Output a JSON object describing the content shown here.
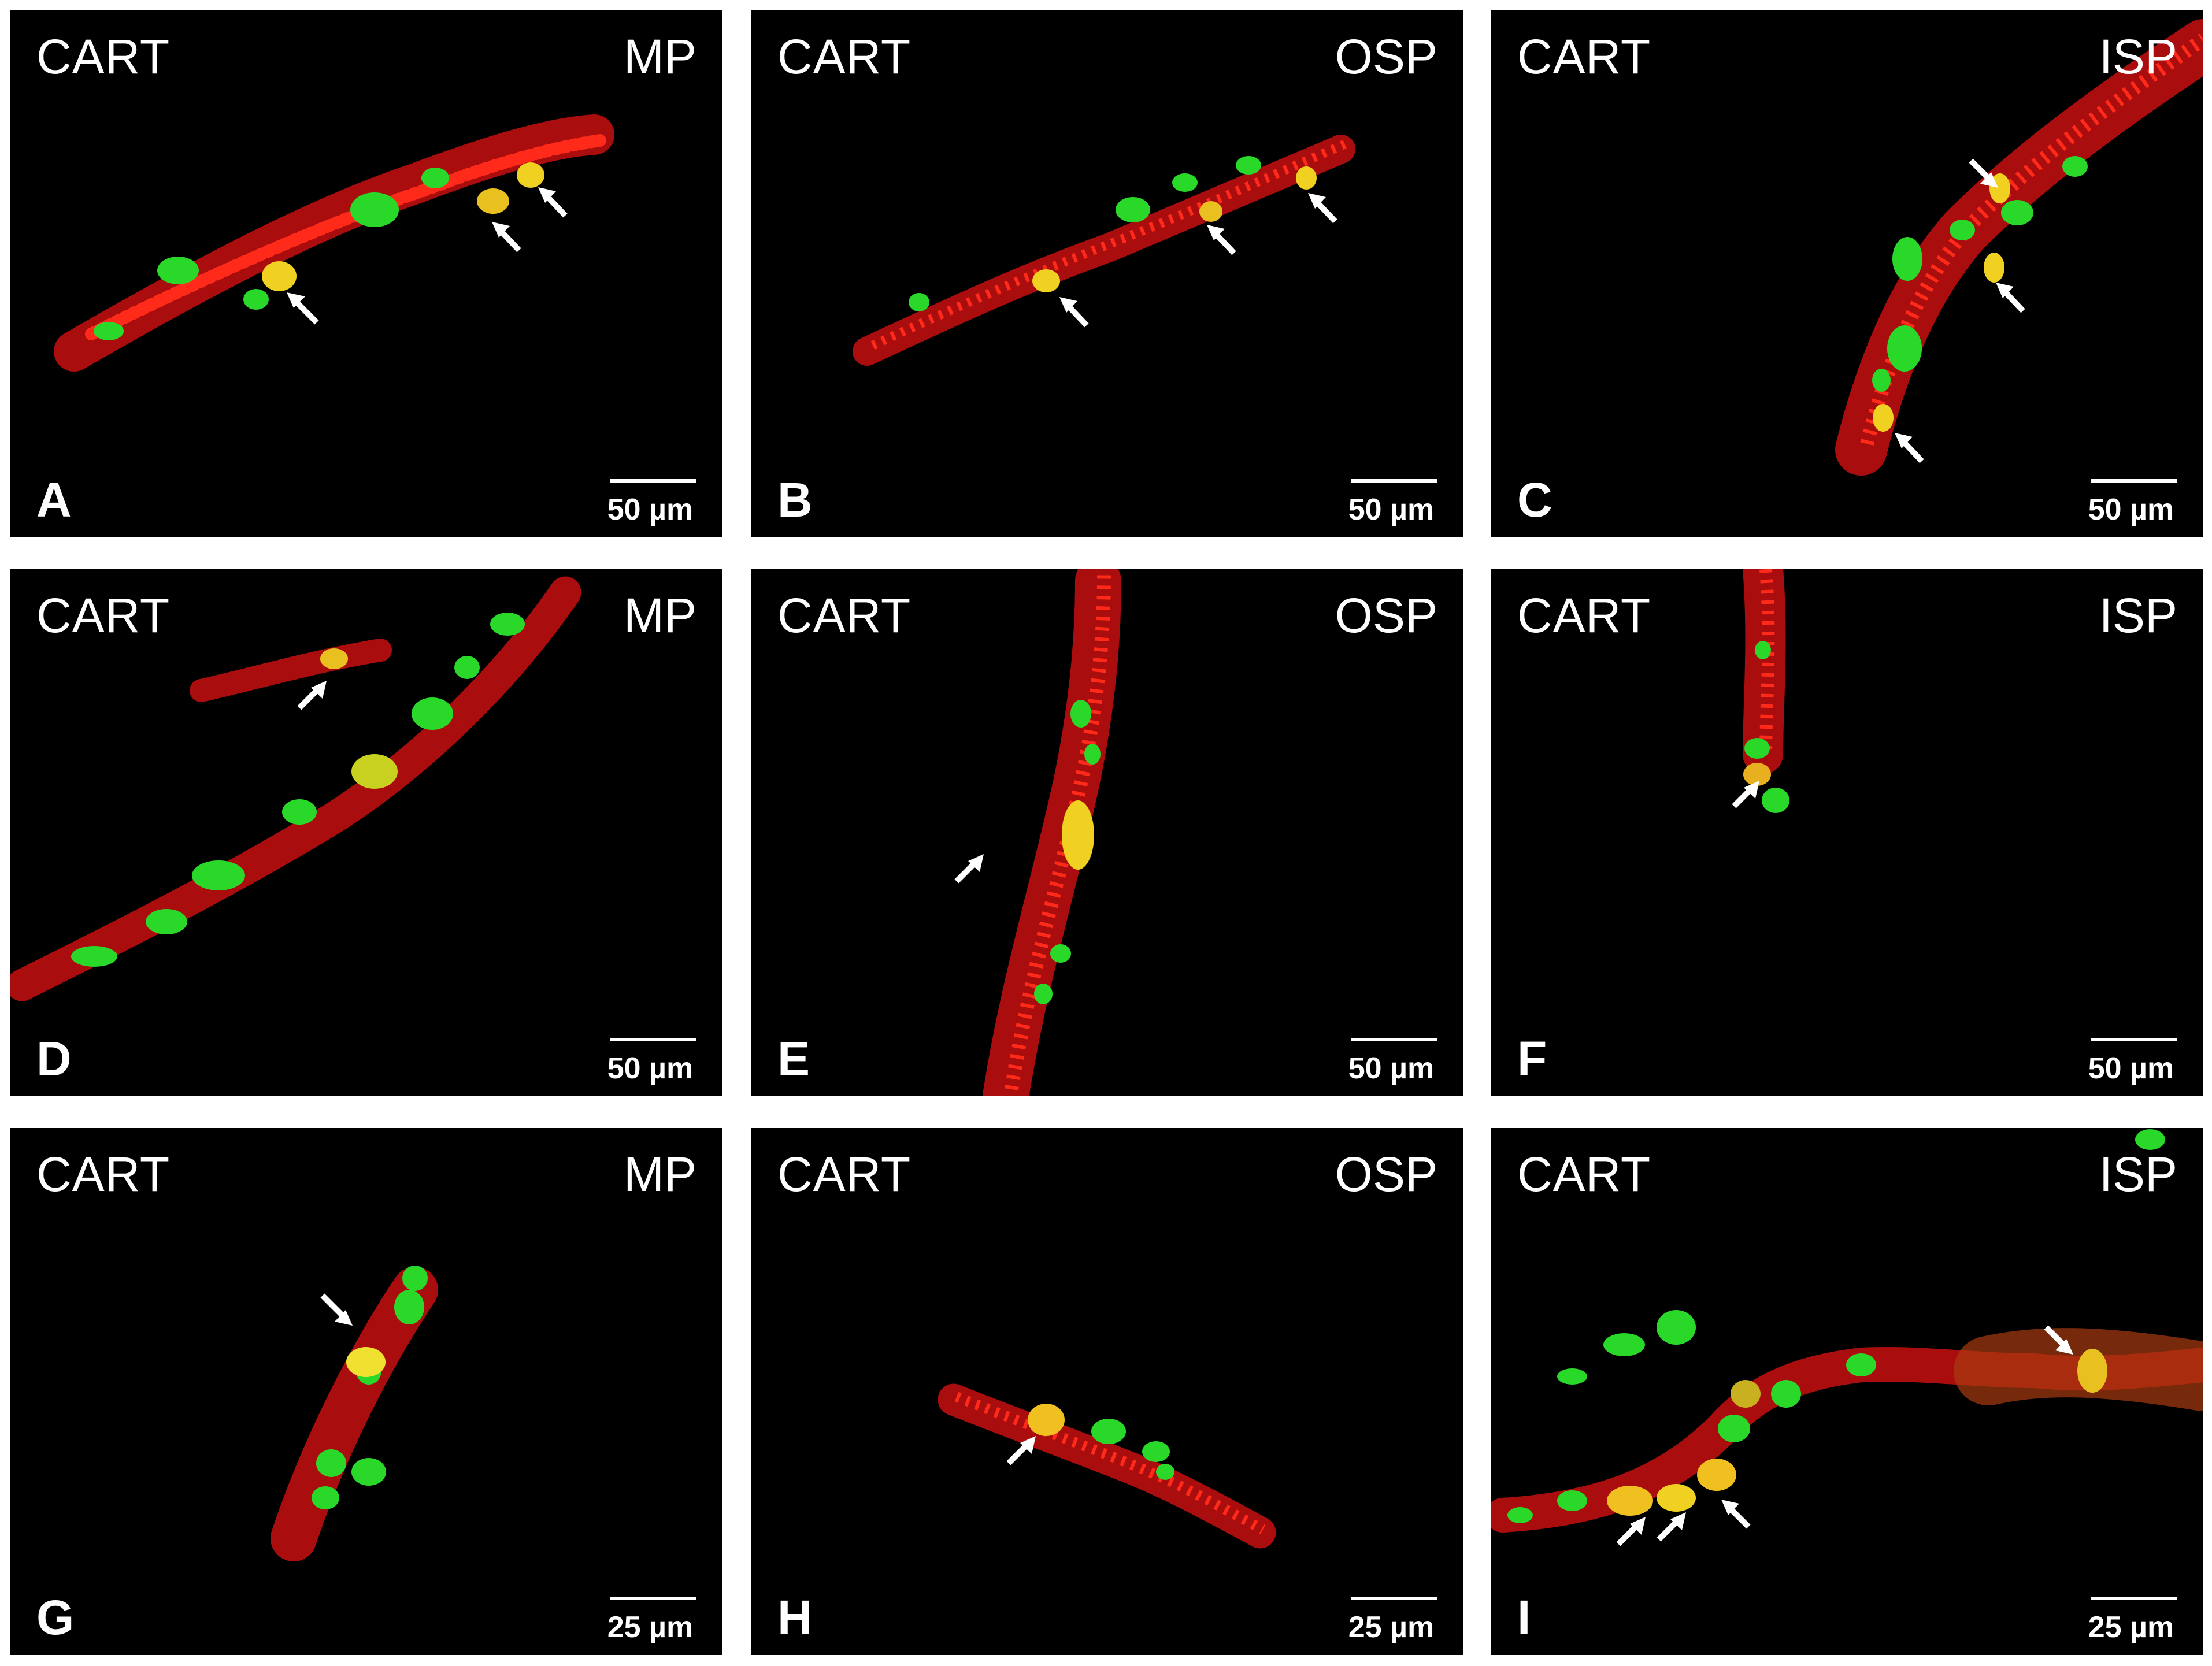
{
  "figure": {
    "panels": [
      {
        "letter": "A",
        "stain": "CART",
        "region": "MP",
        "scale": "50 µm"
      },
      {
        "letter": "B",
        "stain": "CART",
        "region": "OSP",
        "scale": "50 µm"
      },
      {
        "letter": "C",
        "stain": "CART",
        "region": "ISP",
        "scale": "50 µm"
      },
      {
        "letter": "D",
        "stain": "CART",
        "region": "MP",
        "scale": "50 µm"
      },
      {
        "letter": "E",
        "stain": "CART",
        "region": "OSP",
        "scale": "50 µm"
      },
      {
        "letter": "F",
        "stain": "CART",
        "region": "ISP",
        "scale": "50 µm"
      },
      {
        "letter": "G",
        "stain": "CART",
        "region": "MP",
        "scale": "25 µm"
      },
      {
        "letter": "H",
        "stain": "CART",
        "region": "OSP",
        "scale": "25 µm"
      },
      {
        "letter": "I",
        "stain": "CART",
        "region": "ISP",
        "scale": "25 µm"
      }
    ]
  },
  "colors": {
    "background": "#000000",
    "fibers_red": "#e01010",
    "cells_green": "#2ad82a",
    "colocalized_yellow": "#f0d020",
    "arrow": "#ffffff"
  }
}
